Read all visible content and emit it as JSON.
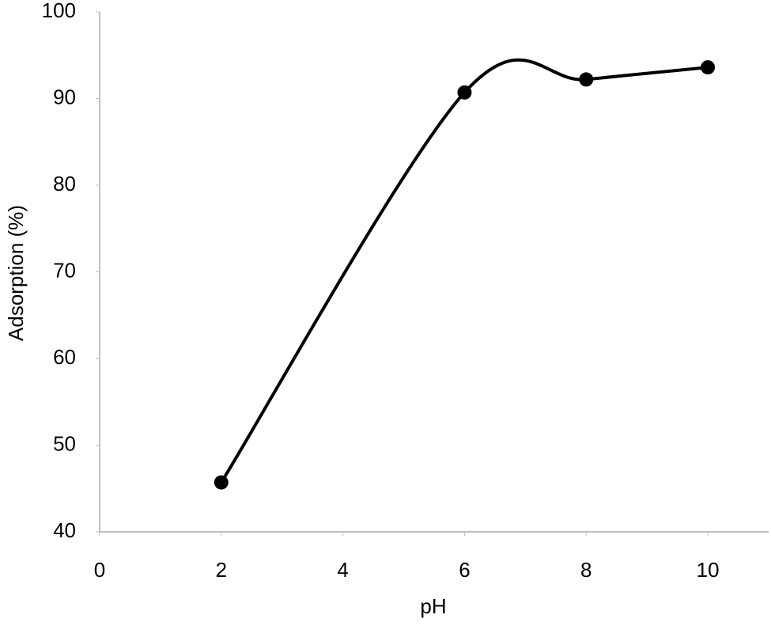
{
  "chart_data": {
    "type": "line",
    "smooth": true,
    "x_label": "pH",
    "y_label": "Adsorption (%)",
    "x": [
      2,
      6,
      8,
      10
    ],
    "series": [
      {
        "color": "#000000",
        "values": [
          45.7,
          90.7,
          92.2,
          93.6
        ]
      }
    ],
    "xlim": [
      0,
      11
    ],
    "xticks": [
      0,
      2,
      4,
      6,
      8,
      10
    ],
    "ylim": [
      40,
      100
    ],
    "yticks": [
      40,
      50,
      60,
      70,
      80,
      90,
      100
    ],
    "grid": false,
    "axis_color": "#bfbfbf"
  }
}
